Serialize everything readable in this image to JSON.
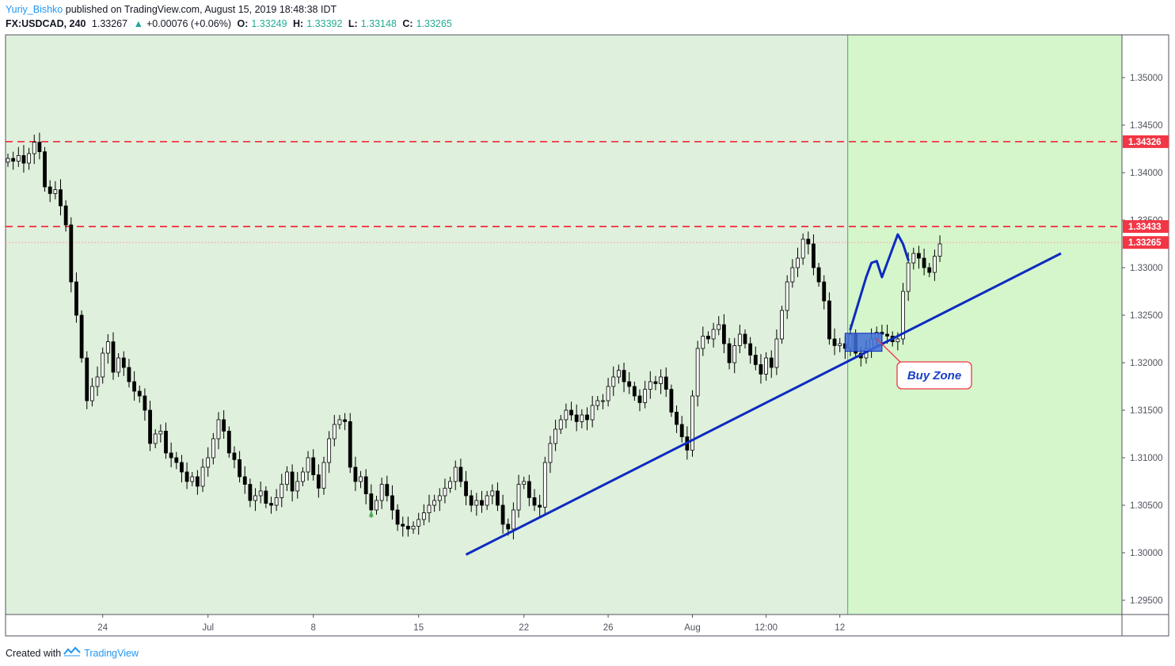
{
  "header": {
    "author": "Yuriy_Bishko",
    "published_text": "published on TradingView.com, August 15, 2019 18:48:38 IDT",
    "symbol": "FX:USDCAD, 240",
    "last": "1.33267",
    "change": "+0.00076 (+0.06%)",
    "o_label": "O:",
    "o_value": "1.33249",
    "h_label": "H:",
    "h_value": "1.33392",
    "l_label": "L:",
    "l_value": "1.33148",
    "c_label": "C:",
    "c_value": "1.33265"
  },
  "footer": {
    "created_with": "Created with",
    "brand": "TradingView"
  },
  "colors": {
    "bg": "#dff0dc",
    "bg_highlight": "#d5f5cb",
    "candle": "#000000",
    "trendline": "#0d2bc0",
    "resistance": "#f23645",
    "axis_text": "#50535e"
  },
  "chart_data": {
    "type": "candlestick",
    "symbol": "FX:USDCAD",
    "interval": "240",
    "ylim": [
      1.2935,
      1.3545
    ],
    "y_ticks": [
      "1.35000",
      "1.34500",
      "1.34000",
      "1.33500",
      "1.33000",
      "1.32500",
      "1.32000",
      "1.31500",
      "1.31000",
      "1.30500",
      "1.30000",
      "1.29500"
    ],
    "x_ticks": [
      {
        "label": "24",
        "idx": 18
      },
      {
        "label": "Jul",
        "idx": 38
      },
      {
        "label": "8",
        "idx": 58
      },
      {
        "label": "15",
        "idx": 78
      },
      {
        "label": "22",
        "idx": 98
      },
      {
        "label": "26",
        "idx": 114
      },
      {
        "label": "Aug",
        "idx": 130
      },
      {
        "label": "12:00",
        "idx": 144
      },
      {
        "label": "12",
        "idx": 158
      }
    ],
    "price_labels": [
      {
        "text": "1.34326",
        "value": 1.34326,
        "color": "#f23645"
      },
      {
        "text": "1.33433",
        "value": 1.33433,
        "color": "#f23645"
      },
      {
        "text": "1.33265",
        "value": 1.33265,
        "color": "#f23645"
      }
    ],
    "horizontal_lines": [
      {
        "value": 1.34326,
        "style": "dashed",
        "color": "#f23645"
      },
      {
        "value": 1.33433,
        "style": "dashed",
        "color": "#f23645"
      },
      {
        "value": 1.33265,
        "style": "dotted",
        "color": "#f7a8ac"
      }
    ],
    "vertical_line_idx": 159.5,
    "trendline": {
      "start": [
        87,
        1.2998
      ],
      "end": [
        200,
        1.3315
      ],
      "color": "#0d2bc0"
    },
    "buy_zone": {
      "label": "Buy Zone",
      "from_idx": 159,
      "to_idx": 166,
      "low": 1.3212,
      "high": 1.3231
    },
    "path_points": [
      [
        160,
        1.3235
      ],
      [
        163,
        1.329
      ],
      [
        164,
        1.3305
      ],
      [
        165,
        1.3307
      ],
      [
        166,
        1.329
      ],
      [
        168,
        1.332
      ],
      [
        169,
        1.3335
      ],
      [
        170,
        1.3325
      ],
      [
        171,
        1.3308
      ]
    ],
    "closes": [
      1.3415,
      1.3412,
      1.3418,
      1.341,
      1.342,
      1.3432,
      1.3422,
      1.3385,
      1.3378,
      1.3382,
      1.3365,
      1.3345,
      1.3285,
      1.325,
      1.3205,
      1.316,
      1.3175,
      1.3185,
      1.321,
      1.3222,
      1.319,
      1.3205,
      1.3195,
      1.318,
      1.317,
      1.3165,
      1.315,
      1.3115,
      1.3125,
      1.3128,
      1.3105,
      1.31,
      1.3095,
      1.3085,
      1.3075,
      1.308,
      1.307,
      1.309,
      1.31,
      1.312,
      1.314,
      1.3128,
      1.3105,
      1.3098,
      1.308,
      1.3072,
      1.3055,
      1.306,
      1.3065,
      1.3052,
      1.305,
      1.3058,
      1.3072,
      1.3085,
      1.3065,
      1.3075,
      1.3085,
      1.31,
      1.3082,
      1.3068,
      1.3095,
      1.312,
      1.3135,
      1.314,
      1.3138,
      1.309,
      1.3075,
      1.308,
      1.3062,
      1.3045,
      1.3055,
      1.3072,
      1.306,
      1.3045,
      1.303,
      1.3028,
      1.3025,
      1.3028,
      1.3035,
      1.3042,
      1.305,
      1.3055,
      1.306,
      1.3068,
      1.3075,
      1.309,
      1.3075,
      1.306,
      1.305,
      1.3055,
      1.305,
      1.306,
      1.3065,
      1.305,
      1.303,
      1.3025,
      1.3045,
      1.3072,
      1.3075,
      1.3058,
      1.305,
      1.3048,
      1.3095,
      1.3115,
      1.313,
      1.314,
      1.315,
      1.3145,
      1.3138,
      1.3145,
      1.314,
      1.3155,
      1.316,
      1.316,
      1.3175,
      1.3185,
      1.3192,
      1.318,
      1.3175,
      1.3165,
      1.3158,
      1.3172,
      1.318,
      1.3178,
      1.3185,
      1.3172,
      1.3148,
      1.3135,
      1.3122,
      1.3108,
      1.3165,
      1.3215,
      1.3228,
      1.3225,
      1.3235,
      1.324,
      1.322,
      1.32,
      1.3218,
      1.323,
      1.322,
      1.3208,
      1.3198,
      1.3188,
      1.3205,
      1.3195,
      1.3225,
      1.3255,
      1.3285,
      1.33,
      1.331,
      1.333,
      1.3325,
      1.33,
      1.3285,
      1.3265,
      1.3225,
      1.3218,
      1.322,
      1.3215,
      1.323,
      1.321,
      1.3205,
      1.3215,
      1.3225,
      1.3232,
      1.323,
      1.3228,
      1.3222,
      1.3225,
      1.3275,
      1.3305,
      1.3315,
      1.331,
      1.33,
      1.3295,
      1.3312,
      1.3325
    ]
  }
}
